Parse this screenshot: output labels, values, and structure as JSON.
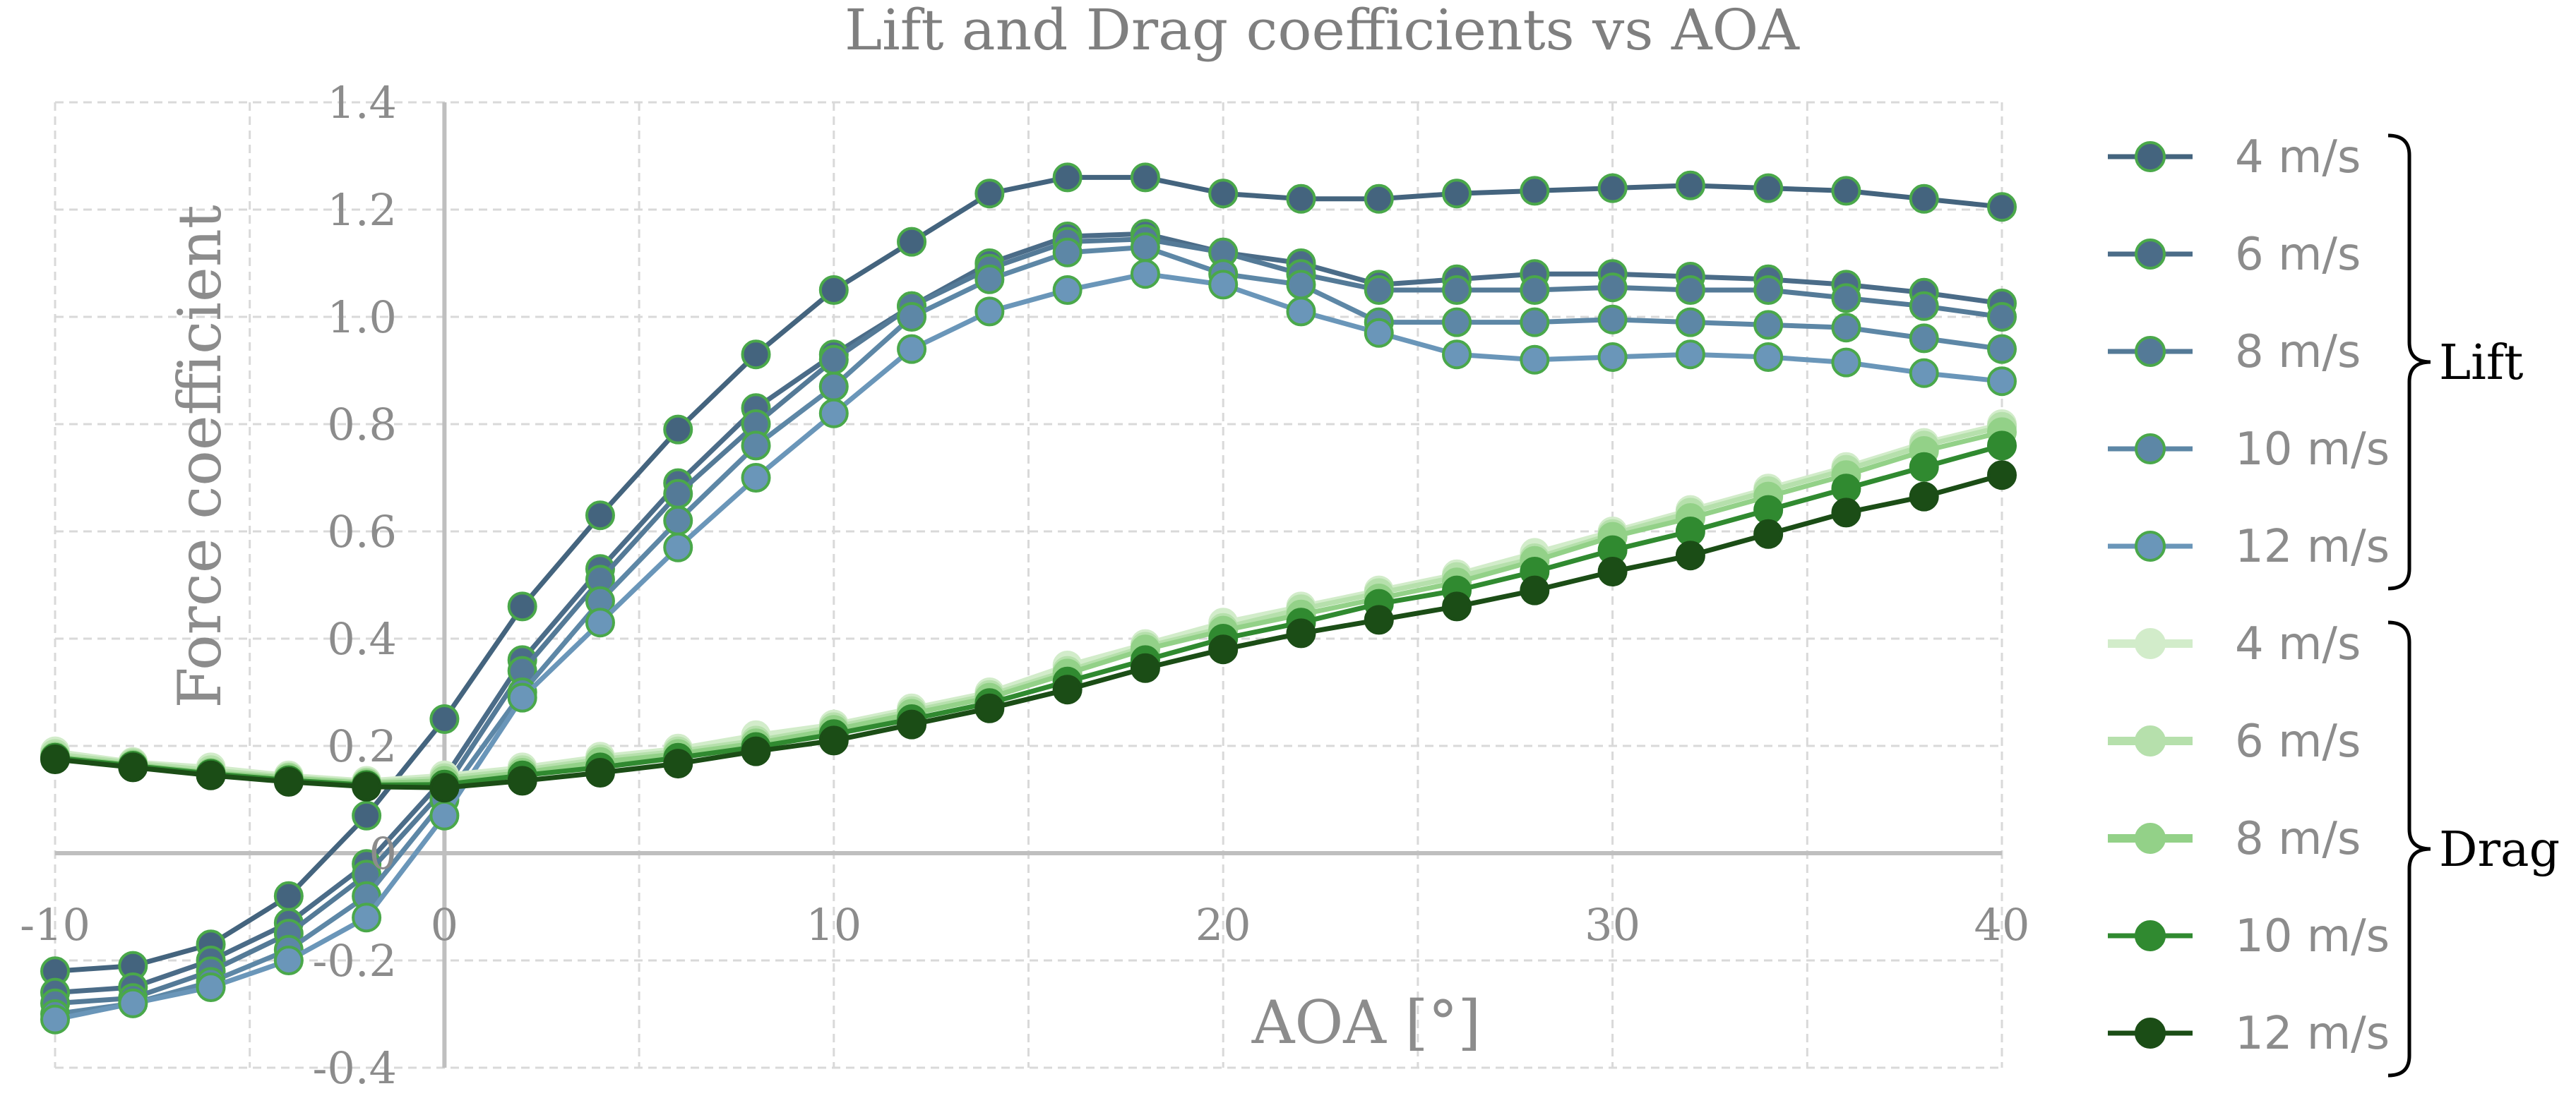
{
  "chart_data": {
    "type": "line",
    "title": "Lift and Drag coefficients vs AOA",
    "xlabel": "AOA [°]",
    "ylabel": "Force coefficient",
    "xlim": [
      -10,
      40
    ],
    "ylim": [
      -0.4,
      1.4
    ],
    "x_ticks": [
      "-10",
      "0",
      "10",
      "20",
      "30",
      "40"
    ],
    "y_ticks": [
      "-0.4",
      "-0.2",
      "0",
      "0.2",
      "0.4",
      "0.6",
      "0.8",
      "1.0",
      "1.2",
      "1.4"
    ],
    "grid": true,
    "legend_position": "right",
    "groups": [
      {
        "label": "Lift",
        "series_indices": [
          0,
          1,
          2,
          3,
          4
        ]
      },
      {
        "label": "Drag",
        "series_indices": [
          5,
          6,
          7,
          8,
          9
        ]
      }
    ],
    "x": [
      -10,
      -8,
      -6,
      -4,
      -2,
      0,
      2,
      4,
      6,
      8,
      10,
      12,
      14,
      16,
      18,
      20,
      22,
      24,
      26,
      28,
      30,
      32,
      34,
      36,
      38,
      40
    ],
    "series": [
      {
        "name": "4 m/s",
        "group": "Lift",
        "color": "#44647e",
        "values": [
          -0.22,
          -0.21,
          -0.17,
          -0.08,
          0.07,
          0.25,
          0.46,
          0.63,
          0.79,
          0.93,
          1.05,
          1.14,
          1.23,
          1.26,
          1.26,
          1.23,
          1.22,
          1.22,
          1.23,
          1.235,
          1.24,
          1.245,
          1.24,
          1.235,
          1.22,
          1.205
        ]
      },
      {
        "name": "6 m/s",
        "group": "Lift",
        "color": "#4b6c88",
        "values": [
          -0.26,
          -0.25,
          -0.2,
          -0.13,
          -0.02,
          0.14,
          0.36,
          0.53,
          0.69,
          0.83,
          0.93,
          1.02,
          1.1,
          1.15,
          1.155,
          1.12,
          1.1,
          1.06,
          1.07,
          1.08,
          1.08,
          1.075,
          1.07,
          1.06,
          1.045,
          1.025
        ]
      },
      {
        "name": "8 m/s",
        "group": "Lift",
        "color": "#547a97",
        "values": [
          -0.28,
          -0.27,
          -0.22,
          -0.15,
          -0.04,
          0.12,
          0.34,
          0.51,
          0.67,
          0.8,
          0.92,
          1.02,
          1.09,
          1.14,
          1.145,
          1.12,
          1.08,
          1.05,
          1.05,
          1.05,
          1.055,
          1.05,
          1.05,
          1.035,
          1.02,
          1.0
        ]
      },
      {
        "name": "10 m/s",
        "group": "Lift",
        "color": "#5d87a6",
        "values": [
          -0.3,
          -0.28,
          -0.24,
          -0.18,
          -0.08,
          0.1,
          0.3,
          0.47,
          0.62,
          0.76,
          0.87,
          1.0,
          1.07,
          1.12,
          1.13,
          1.08,
          1.06,
          0.99,
          0.99,
          0.99,
          0.995,
          0.99,
          0.985,
          0.98,
          0.96,
          0.94
        ]
      },
      {
        "name": "12 m/s",
        "group": "Lift",
        "color": "#6a96b9",
        "values": [
          -0.31,
          -0.28,
          -0.25,
          -0.2,
          -0.12,
          0.07,
          0.29,
          0.43,
          0.57,
          0.7,
          0.82,
          0.94,
          1.01,
          1.05,
          1.08,
          1.06,
          1.01,
          0.97,
          0.93,
          0.92,
          0.925,
          0.93,
          0.925,
          0.915,
          0.895,
          0.88
        ]
      },
      {
        "name": "4 m/s",
        "group": "Drag",
        "color": "#d2ecca",
        "values": [
          0.19,
          0.17,
          0.16,
          0.145,
          0.135,
          0.145,
          0.16,
          0.18,
          0.195,
          0.22,
          0.24,
          0.27,
          0.3,
          0.35,
          0.39,
          0.43,
          0.46,
          0.49,
          0.52,
          0.56,
          0.6,
          0.64,
          0.68,
          0.72,
          0.765,
          0.8
        ]
      },
      {
        "name": "6 m/s",
        "group": "Drag",
        "color": "#b6e0ac",
        "values": [
          0.185,
          0.168,
          0.155,
          0.142,
          0.132,
          0.14,
          0.155,
          0.175,
          0.19,
          0.21,
          0.235,
          0.265,
          0.295,
          0.34,
          0.385,
          0.42,
          0.455,
          0.485,
          0.515,
          0.55,
          0.595,
          0.635,
          0.675,
          0.715,
          0.76,
          0.795
        ]
      },
      {
        "name": "8 m/s",
        "group": "Drag",
        "color": "#93d188",
        "values": [
          0.18,
          0.165,
          0.15,
          0.14,
          0.13,
          0.135,
          0.15,
          0.17,
          0.185,
          0.205,
          0.23,
          0.26,
          0.29,
          0.335,
          0.38,
          0.415,
          0.445,
          0.475,
          0.505,
          0.545,
          0.59,
          0.625,
          0.665,
          0.705,
          0.75,
          0.785
        ]
      },
      {
        "name": "10 m/s",
        "group": "Drag",
        "color": "#308a30",
        "values": [
          0.178,
          0.163,
          0.148,
          0.136,
          0.127,
          0.128,
          0.145,
          0.16,
          0.178,
          0.198,
          0.222,
          0.25,
          0.28,
          0.32,
          0.36,
          0.4,
          0.43,
          0.465,
          0.49,
          0.525,
          0.565,
          0.6,
          0.64,
          0.68,
          0.72,
          0.76
        ]
      },
      {
        "name": "12 m/s",
        "group": "Drag",
        "color": "#1b4d16",
        "values": [
          0.175,
          0.16,
          0.145,
          0.133,
          0.124,
          0.122,
          0.135,
          0.15,
          0.167,
          0.19,
          0.21,
          0.24,
          0.27,
          0.305,
          0.345,
          0.38,
          0.41,
          0.435,
          0.46,
          0.49,
          0.525,
          0.555,
          0.595,
          0.635,
          0.665,
          0.705
        ]
      }
    ]
  }
}
